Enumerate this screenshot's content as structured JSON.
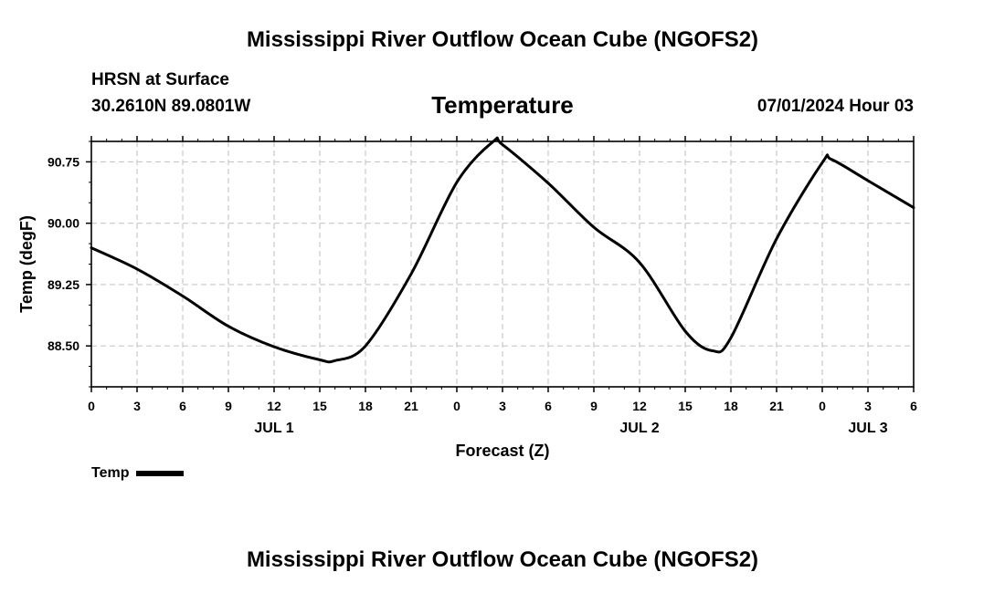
{
  "title": "Mississippi River Outflow Ocean Cube (NGOFS2)",
  "footer_title": "Mississippi River Outflow Ocean Cube (NGOFS2)",
  "header": {
    "station": "HRSN at Surface",
    "coords": "30.2610N  89.0801W",
    "chart_title": "Temperature",
    "timestamp": "07/01/2024 Hour 03"
  },
  "chart_data": {
    "type": "line",
    "xlabel": "Forecast (Z)",
    "ylabel": "Temp (degF)",
    "x_unit": "hours",
    "xlim": [
      0,
      54
    ],
    "ylim": [
      88.0,
      91.0
    ],
    "y_ticks": [
      "88.50",
      "89.25",
      "90.00",
      "90.75"
    ],
    "x_ticks": [
      {
        "hour": 0,
        "label": "0"
      },
      {
        "hour": 3,
        "label": "3"
      },
      {
        "hour": 6,
        "label": "6"
      },
      {
        "hour": 9,
        "label": "9"
      },
      {
        "hour": 12,
        "label": "12"
      },
      {
        "hour": 15,
        "label": "15"
      },
      {
        "hour": 18,
        "label": "18"
      },
      {
        "hour": 21,
        "label": "21"
      },
      {
        "hour": 24,
        "label": "0"
      },
      {
        "hour": 27,
        "label": "3"
      },
      {
        "hour": 30,
        "label": "6"
      },
      {
        "hour": 33,
        "label": "9"
      },
      {
        "hour": 36,
        "label": "12"
      },
      {
        "hour": 39,
        "label": "15"
      },
      {
        "hour": 42,
        "label": "18"
      },
      {
        "hour": 45,
        "label": "21"
      },
      {
        "hour": 48,
        "label": "0"
      },
      {
        "hour": 51,
        "label": "3"
      },
      {
        "hour": 54,
        "label": "6"
      }
    ],
    "day_labels": [
      {
        "hour": 12,
        "label": "JUL 1"
      },
      {
        "hour": 36,
        "label": "JUL 2"
      },
      {
        "hour": 51,
        "label": "JUL 3"
      }
    ],
    "grid": true,
    "series": [
      {
        "name": "Temp",
        "color": "#000000",
        "x": [
          0,
          3,
          6,
          9,
          12,
          15,
          16,
          18,
          21,
          24,
          26.4,
          27,
          30,
          33,
          36,
          39,
          40.8,
          42,
          45,
          48,
          48.6,
          51,
          54
        ],
        "y": [
          89.7,
          89.44,
          89.11,
          88.74,
          88.49,
          88.33,
          88.32,
          88.5,
          89.38,
          90.5,
          91.0,
          90.96,
          90.49,
          89.95,
          89.52,
          88.68,
          88.44,
          88.6,
          89.81,
          90.74,
          90.78,
          90.52,
          90.19
        ]
      }
    ]
  }
}
